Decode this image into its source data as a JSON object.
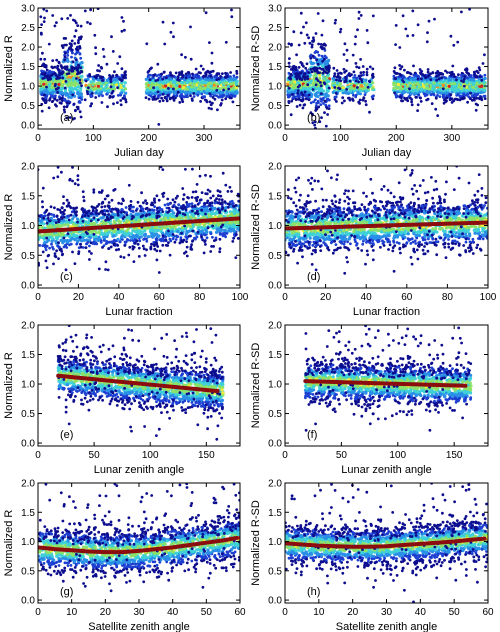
{
  "figure": {
    "background": "#ffffff",
    "density_colors": [
      "#0d0d8f",
      "#1c3fd1",
      "#2a8fe6",
      "#3fd0d8",
      "#8be26a",
      "#f2ea3a",
      "#f28a1c",
      "#d92020"
    ],
    "fit_color": "#8b0d0d"
  },
  "chart_data": [
    {
      "type": "scatter",
      "panel_label": "(a)",
      "xlabel": "Julian day",
      "ylabel": "Normalized R",
      "xlim": [
        0,
        365
      ],
      "ylim": [
        -0.1,
        3.0
      ],
      "xticks": [
        0,
        100,
        200,
        300
      ],
      "yticks": [
        0.0,
        0.5,
        1.0,
        1.5,
        2.0,
        2.5,
        3.0
      ],
      "ytick_labels": [
        "0.0",
        "0.5",
        "1.0",
        "1.5",
        "2.0",
        "2.5",
        "3.0"
      ],
      "density_clusters": [
        {
          "x_range": [
            5,
            45
          ],
          "center": 1.05,
          "spread": 0.22,
          "weight": 1.0
        },
        {
          "x_range": [
            45,
            80
          ],
          "center": 1.2,
          "spread": 0.45,
          "weight": 0.6
        },
        {
          "x_range": [
            85,
            160
          ],
          "center": 1.0,
          "spread": 0.18,
          "weight": 0.35
        },
        {
          "x_range": [
            195,
            360
          ],
          "center": 1.0,
          "spread": 0.18,
          "weight": 1.0
        }
      ],
      "outlier_range": [
        0.1,
        3.0
      ],
      "fit": null
    },
    {
      "type": "scatter",
      "panel_label": "(b)",
      "xlabel": "Julian day",
      "ylabel": "Normalized R-SD",
      "xlim": [
        0,
        365
      ],
      "ylim": [
        -0.1,
        3.0
      ],
      "xticks": [
        0,
        100,
        200,
        300
      ],
      "yticks": [
        0.0,
        0.5,
        1.0,
        1.5,
        2.0,
        2.5,
        3.0
      ],
      "ytick_labels": [
        "0.0",
        "0.5",
        "1.0",
        "1.5",
        "2.0",
        "2.5",
        "3.0"
      ],
      "density_clusters": [
        {
          "x_range": [
            5,
            45
          ],
          "center": 1.05,
          "spread": 0.22,
          "weight": 1.0
        },
        {
          "x_range": [
            45,
            80
          ],
          "center": 1.2,
          "spread": 0.45,
          "weight": 0.6
        },
        {
          "x_range": [
            85,
            160
          ],
          "center": 1.0,
          "spread": 0.18,
          "weight": 0.35
        },
        {
          "x_range": [
            195,
            360
          ],
          "center": 1.0,
          "spread": 0.18,
          "weight": 1.0
        }
      ],
      "outlier_range": [
        0.1,
        3.0
      ],
      "fit": null
    },
    {
      "type": "scatter",
      "panel_label": "(c)",
      "xlabel": "Lunar  fraction",
      "ylabel": "Normalized R",
      "xlim": [
        0,
        100
      ],
      "ylim": [
        -0.05,
        2.0
      ],
      "xticks": [
        0,
        20,
        40,
        60,
        80,
        100
      ],
      "yticks": [
        0.0,
        0.5,
        1.0,
        1.5,
        2.0
      ],
      "ytick_labels": [
        "0.0",
        "0.5",
        "1.0",
        "1.5",
        "2.0"
      ],
      "density_clusters": [
        {
          "x_range": [
            0,
            100
          ],
          "center": 1.0,
          "spread": 0.2,
          "weight": 1.0
        }
      ],
      "outlier_range": [
        0.35,
        2.0
      ],
      "fit": {
        "x": [
          0,
          100
        ],
        "y": [
          0.9,
          1.12
        ]
      }
    },
    {
      "type": "scatter",
      "panel_label": "(d)",
      "xlabel": "Lunar  fraction",
      "ylabel": "Normalized R-SD",
      "xlim": [
        0,
        100
      ],
      "ylim": [
        -0.05,
        2.0
      ],
      "xticks": [
        0,
        20,
        40,
        60,
        80,
        100
      ],
      "yticks": [
        0.0,
        0.5,
        1.0,
        1.5,
        2.0
      ],
      "ytick_labels": [
        "0.0",
        "0.5",
        "1.0",
        "1.5",
        "2.0"
      ],
      "density_clusters": [
        {
          "x_range": [
            0,
            100
          ],
          "center": 1.0,
          "spread": 0.2,
          "weight": 1.0
        }
      ],
      "outlier_range": [
        0.2,
        2.0
      ],
      "fit": {
        "x": [
          0,
          100
        ],
        "y": [
          0.95,
          1.05
        ]
      }
    },
    {
      "type": "scatter",
      "panel_label": "(e)",
      "xlabel": "Lunar zenith angle",
      "ylabel": "Normalized R",
      "xlim": [
        0,
        180
      ],
      "ylim": [
        -0.05,
        2.0
      ],
      "xticks": [
        0,
        50,
        100,
        150
      ],
      "yticks": [
        0.0,
        0.5,
        1.0,
        1.5,
        2.0
      ],
      "ytick_labels": [
        "0.0",
        "0.5",
        "1.0",
        "1.5",
        "2.0"
      ],
      "density_clusters": [
        {
          "x_range": [
            18,
            165
          ],
          "center": 1.0,
          "spread": 0.18,
          "weight": 1.0
        }
      ],
      "outlier_range": [
        0.45,
        2.0
      ],
      "fit": {
        "x": [
          18,
          160
        ],
        "y": [
          1.14,
          0.88
        ]
      }
    },
    {
      "type": "scatter",
      "panel_label": "(f)",
      "xlabel": "Lunar zenith angle",
      "ylabel": "Normalized R-SD",
      "xlim": [
        0,
        180
      ],
      "ylim": [
        -0.05,
        2.0
      ],
      "xticks": [
        0,
        50,
        100,
        150
      ],
      "yticks": [
        0.0,
        0.5,
        1.0,
        1.5,
        2.0
      ],
      "ytick_labels": [
        "0.0",
        "0.5",
        "1.0",
        "1.5",
        "2.0"
      ],
      "density_clusters": [
        {
          "x_range": [
            18,
            165
          ],
          "center": 1.0,
          "spread": 0.18,
          "weight": 1.0
        }
      ],
      "outlier_range": [
        0.45,
        2.0
      ],
      "fit": {
        "x": [
          18,
          160
        ],
        "y": [
          1.05,
          0.97
        ]
      }
    },
    {
      "type": "scatter",
      "panel_label": "(g)",
      "xlabel": "Satellite zenith angle",
      "ylabel": "Normalized R",
      "xlim": [
        0,
        60
      ],
      "ylim": [
        -0.05,
        2.0
      ],
      "xticks": [
        0,
        10,
        20,
        30,
        40,
        50,
        60
      ],
      "yticks": [
        0.0,
        0.5,
        1.0,
        1.5,
        2.0
      ],
      "ytick_labels": [
        "0.0",
        "0.5",
        "1.0",
        "1.5",
        "2.0"
      ],
      "density_clusters": [
        {
          "x_range": [
            0,
            60
          ],
          "center": 0.9,
          "spread": 0.18,
          "weight": 1.0
        }
      ],
      "outlier_range": [
        0.35,
        2.0
      ],
      "fit": {
        "x": [
          0,
          5,
          10,
          15,
          20,
          25,
          30,
          35,
          40,
          45,
          50,
          55,
          59
        ],
        "y": [
          0.9,
          0.87,
          0.85,
          0.83,
          0.82,
          0.82,
          0.84,
          0.87,
          0.9,
          0.94,
          0.98,
          1.02,
          1.06
        ]
      }
    },
    {
      "type": "scatter",
      "panel_label": "(h)",
      "xlabel": "Satellite zenith angle",
      "ylabel": "Normalized R-SD",
      "xlim": [
        0,
        60
      ],
      "ylim": [
        -0.05,
        2.0
      ],
      "xticks": [
        0,
        10,
        20,
        30,
        40,
        50,
        60
      ],
      "yticks": [
        0.0,
        0.5,
        1.0,
        1.5,
        2.0
      ],
      "ytick_labels": [
        "0.0",
        "0.5",
        "1.0",
        "1.5",
        "2.0"
      ],
      "density_clusters": [
        {
          "x_range": [
            0,
            60
          ],
          "center": 0.95,
          "spread": 0.16,
          "weight": 1.0
        }
      ],
      "outlier_range": [
        0.4,
        2.0
      ],
      "fit": {
        "x": [
          0,
          5,
          10,
          15,
          20,
          25,
          30,
          35,
          40,
          45,
          50,
          55,
          59
        ],
        "y": [
          0.97,
          0.95,
          0.93,
          0.92,
          0.91,
          0.91,
          0.92,
          0.94,
          0.96,
          0.98,
          1.0,
          1.03,
          1.05
        ]
      }
    }
  ]
}
